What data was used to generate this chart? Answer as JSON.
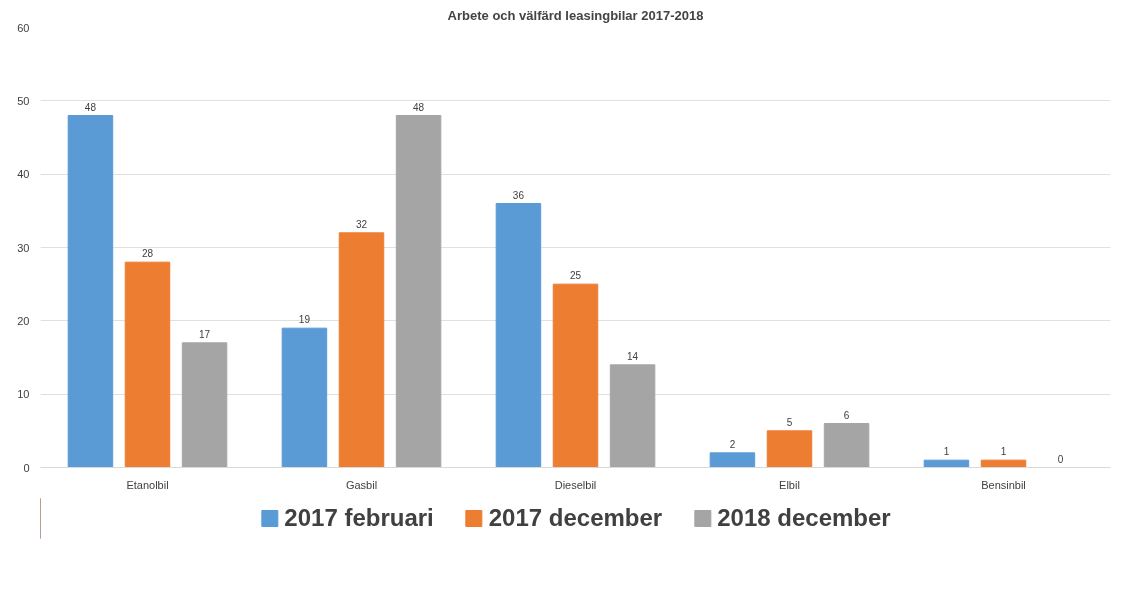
{
  "chart_data": {
    "type": "bar",
    "title": "Arbete och välfärd leasingbilar 2017-2018",
    "categories": [
      "Etanolbil",
      "Gasbil",
      "Dieselbil",
      "Elbil",
      "Bensinbil"
    ],
    "series": [
      {
        "name": "2017 februari",
        "color": "#5b9bd5",
        "values": [
          48,
          19,
          36,
          2,
          1
        ]
      },
      {
        "name": "2017 december",
        "color": "#ed7d31",
        "values": [
          28,
          32,
          25,
          5,
          1
        ]
      },
      {
        "name": "2018 december",
        "color": "#a5a5a5",
        "values": [
          17,
          48,
          14,
          6,
          0
        ]
      }
    ],
    "ylim": [
      0,
      60
    ],
    "yticks": [
      0,
      10,
      20,
      30,
      40,
      50,
      60
    ],
    "grid": "y",
    "legend": "bottom",
    "data_labels": true
  }
}
